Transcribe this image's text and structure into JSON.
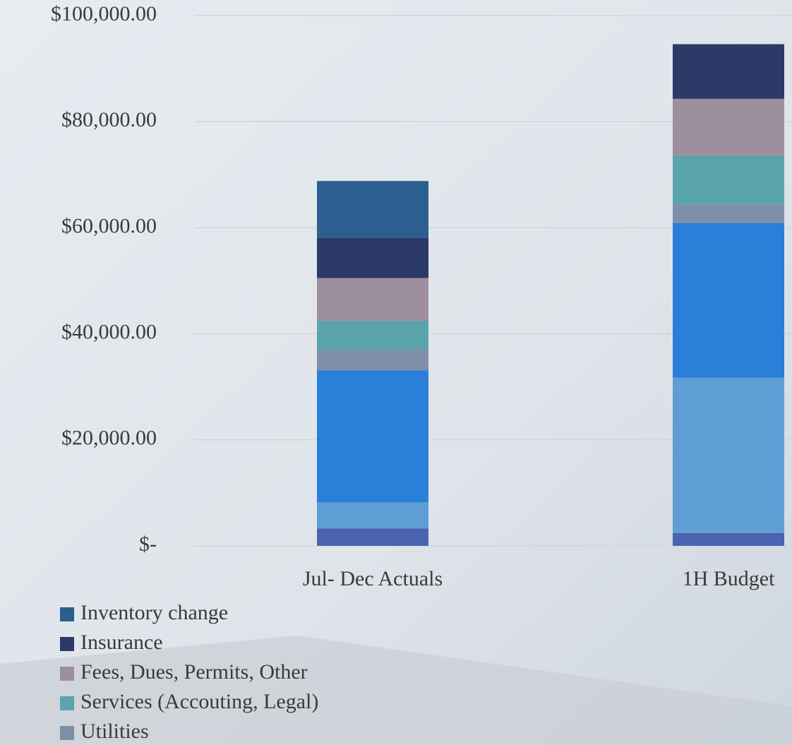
{
  "chart_data": {
    "type": "stacked-bar",
    "categories": [
      "Jul- Dec Actuals",
      "1H Budget"
    ],
    "series": [
      {
        "color": "#4a64b0",
        "values": [
          3300,
          2400
        ]
      },
      {
        "color": "#5f9ed4",
        "values": [
          4900,
          29300
        ]
      },
      {
        "color": "#2a7fd8",
        "values": [
          24900,
          29200
        ]
      },
      {
        "name": "Utilities",
        "color": "#7f8faa",
        "values": [
          4000,
          3500
        ]
      },
      {
        "name": "Services (Accouting, Legal)",
        "color": "#5aa4ad",
        "values": [
          5300,
          9200
        ]
      },
      {
        "name": "Fees, Dues, Permits, Other",
        "color": "#9e8f9f",
        "values": [
          8100,
          10700
        ]
      },
      {
        "name": "Insurance",
        "color": "#2b3a66",
        "values": [
          7600,
          10300
        ]
      },
      {
        "name": "Inventory change",
        "color": "#2a5f8f",
        "values": [
          10700,
          0
        ]
      }
    ],
    "ylim": [
      0,
      100000
    ],
    "yticks": [
      {
        "value": 0,
        "label": "$-"
      },
      {
        "value": 20000,
        "label": "$20,000.00"
      },
      {
        "value": 40000,
        "label": "$40,000.00"
      },
      {
        "value": 60000,
        "label": "$60,000.00"
      },
      {
        "value": 80000,
        "label": "$80,000.00"
      },
      {
        "value": 100000,
        "label": "$100,000.00"
      }
    ],
    "grid": true
  }
}
